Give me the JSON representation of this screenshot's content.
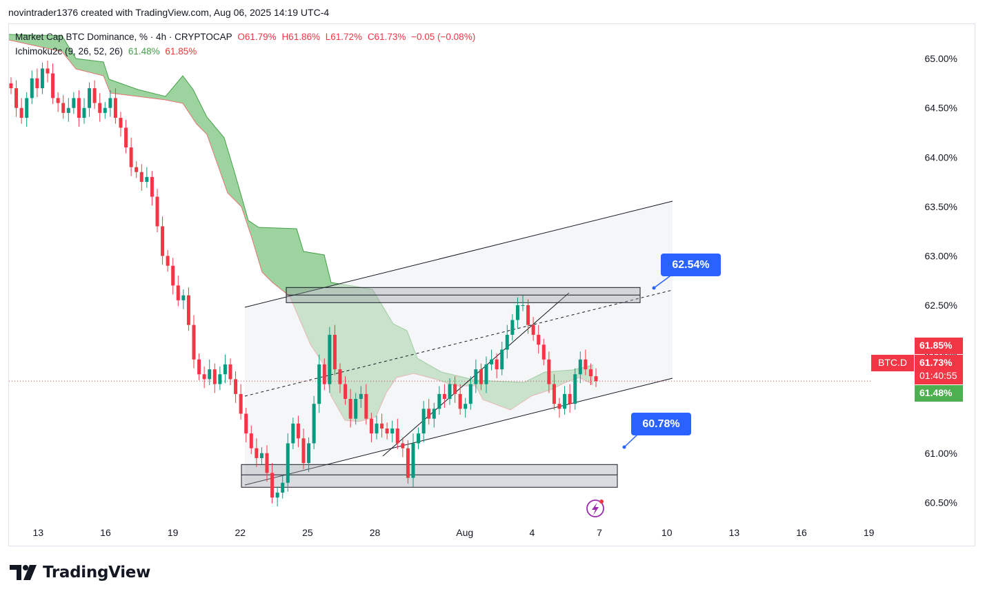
{
  "header": {
    "author_line": "novintrader1376 created with TradingView.com, Aug 06, 2025 14:19 UTC-4"
  },
  "legend": {
    "symbol": "Market Cap BTC Dominance, % · 4h · CRYPTOCAP",
    "open": "O61.79%",
    "high": "H61.86%",
    "low": "L61.72%",
    "close": "C61.73%",
    "change": "−0.05 (−0.08%)",
    "indicator": "Ichimoku2c (9, 26, 52, 26)",
    "indicator_a": "61.48%",
    "indicator_b": "61.85%"
  },
  "price_tags": {
    "symbol_tag": "BTC.D",
    "upper": "61.85%",
    "current": "61.73%",
    "countdown": "01:40:55",
    "lower": "61.48%"
  },
  "annotations": {
    "upper_callout": "62.54%",
    "lower_callout": "60.78%"
  },
  "branding": {
    "logo_text": "TradingView"
  },
  "colors": {
    "up": "#089981",
    "down": "#f23645",
    "cloud": "#4caf50",
    "callout": "#2962ff",
    "tag_red": "#f23645",
    "tag_green": "#4caf50"
  },
  "chart_data": {
    "type": "candlestick",
    "interval": "4h",
    "y_axis": {
      "ylim": [
        60.3,
        65.35
      ],
      "ticks": [
        "65.00%",
        "64.50%",
        "64.00%",
        "63.50%",
        "63.00%",
        "62.50%",
        "62.00%",
        "61.00%",
        "60.50%"
      ],
      "tick_values": [
        65.0,
        64.5,
        64.0,
        63.5,
        63.0,
        62.5,
        62.0,
        61.0,
        60.5
      ]
    },
    "x_axis": {
      "ticks": [
        "13",
        "16",
        "19",
        "22",
        "25",
        "28",
        "Aug",
        "4",
        "7",
        "10",
        "13",
        "16",
        "19"
      ],
      "tick_days": [
        13,
        16,
        19,
        22,
        25,
        28,
        32,
        35,
        38,
        41,
        44,
        47,
        50
      ],
      "xlim_days": [
        11.7,
        51.7
      ]
    },
    "last_price": 61.73,
    "ohlc_closes": [
      64.7,
      64.5,
      64.4,
      64.6,
      64.8,
      64.7,
      64.9,
      64.85,
      64.6,
      64.55,
      64.45,
      64.5,
      64.6,
      64.4,
      64.5,
      64.7,
      64.55,
      64.45,
      64.5,
      64.6,
      64.4,
      64.3,
      64.1,
      63.9,
      63.85,
      63.75,
      63.8,
      63.6,
      63.3,
      63.0,
      62.9,
      62.7,
      62.55,
      62.6,
      62.3,
      61.95,
      61.8,
      61.75,
      61.85,
      61.7,
      61.8,
      61.9,
      61.75,
      61.6,
      61.4,
      61.2,
      61.05,
      60.95,
      61.0,
      60.8,
      60.55,
      60.6,
      60.7,
      61.1,
      61.3,
      61.15,
      60.9,
      61.1,
      61.5,
      61.9,
      61.7,
      62.2,
      61.85,
      61.7,
      61.55,
      61.35,
      61.55,
      61.6,
      61.35,
      61.2,
      61.3,
      61.25,
      61.2,
      61.25,
      61.1,
      61.05,
      60.75,
      61.1,
      61.2,
      61.45,
      61.35,
      61.45,
      61.6,
      61.55,
      61.7,
      61.6,
      61.45,
      61.5,
      61.7,
      61.85,
      61.7,
      61.9,
      61.95,
      61.85,
      62.05,
      62.2,
      62.35,
      62.5,
      62.5,
      62.3,
      62.2,
      62.1,
      61.95,
      61.7,
      61.5,
      61.45,
      61.6,
      61.5,
      61.8,
      61.95,
      61.85,
      61.78,
      61.73
    ],
    "horizontal_levels": [
      62.54,
      60.78
    ],
    "ichimoku": {
      "span_a_last": 61.48,
      "span_b_last": 61.85
    }
  }
}
